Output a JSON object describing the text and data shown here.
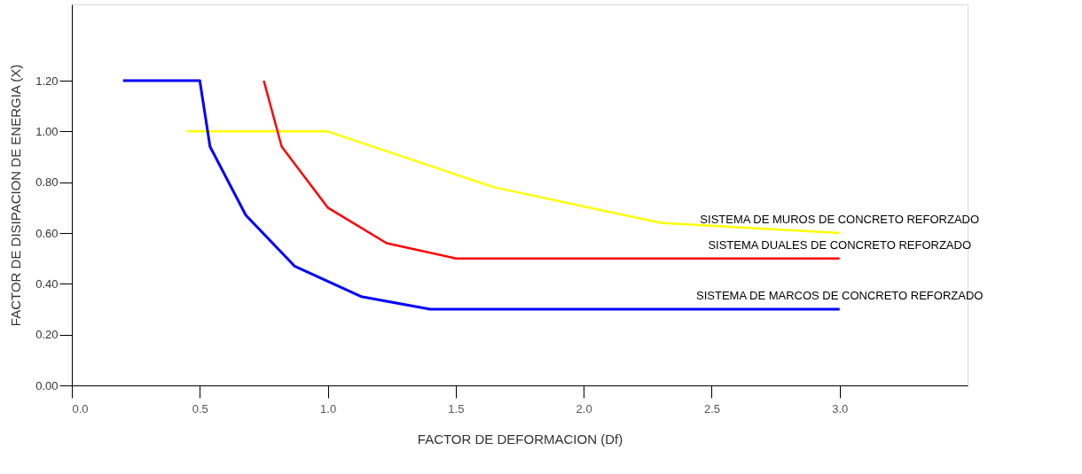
{
  "chart_data": {
    "type": "line",
    "xlabel": "FACTOR DE DEFORMACION (Df)",
    "ylabel": "FACTOR DE DISIPACION DE ENERGIA (X)",
    "xlim": [
      0,
      3.5
    ],
    "ylim": [
      0,
      1.5
    ],
    "xticks": [
      {
        "value": 0,
        "label": "0.0"
      },
      0.5,
      {
        "value": 1,
        "label": "1.0"
      },
      1.5,
      {
        "value": 2,
        "label": "2.0"
      },
      2.5,
      {
        "value": 3,
        "label": "3.0"
      }
    ],
    "yticks": [
      {
        "value": 0,
        "label": "0.00"
      },
      {
        "value": 0.2,
        "label": "0.20"
      },
      {
        "value": 0.4,
        "label": "0.40"
      },
      {
        "value": 0.6,
        "label": "0.60"
      },
      {
        "value": 0.8,
        "label": "0.80"
      },
      {
        "value": 1.0,
        "label": "1.00"
      },
      {
        "value": 1.2,
        "label": "1.20"
      }
    ],
    "grid": false,
    "series": [
      {
        "name": "SISTEMA DE MUROS DE CONCRETO REFORZADO",
        "color": "#ffff00",
        "x": [
          0.45,
          1.0,
          1.65,
          2.3,
          3.0
        ],
        "values": [
          1.0,
          1.0,
          0.78,
          0.64,
          0.6
        ]
      },
      {
        "name": "SISTEMA DUALES DE CONCRETO REFORZADO",
        "color": "#ff0000",
        "x": [
          0.75,
          0.82,
          1.0,
          1.23,
          1.5,
          3.0
        ],
        "values": [
          1.2,
          0.94,
          0.7,
          0.56,
          0.5,
          0.5
        ]
      },
      {
        "name": "SISTEMA DE MARCOS DE CONCRETO REFORZADO",
        "color": "#0000ff",
        "x": [
          0.2,
          0.5,
          0.54,
          0.68,
          0.87,
          1.13,
          1.4,
          3.0
        ],
        "values": [
          1.2,
          1.2,
          0.94,
          0.67,
          0.47,
          0.35,
          0.3,
          0.3
        ]
      }
    ]
  }
}
